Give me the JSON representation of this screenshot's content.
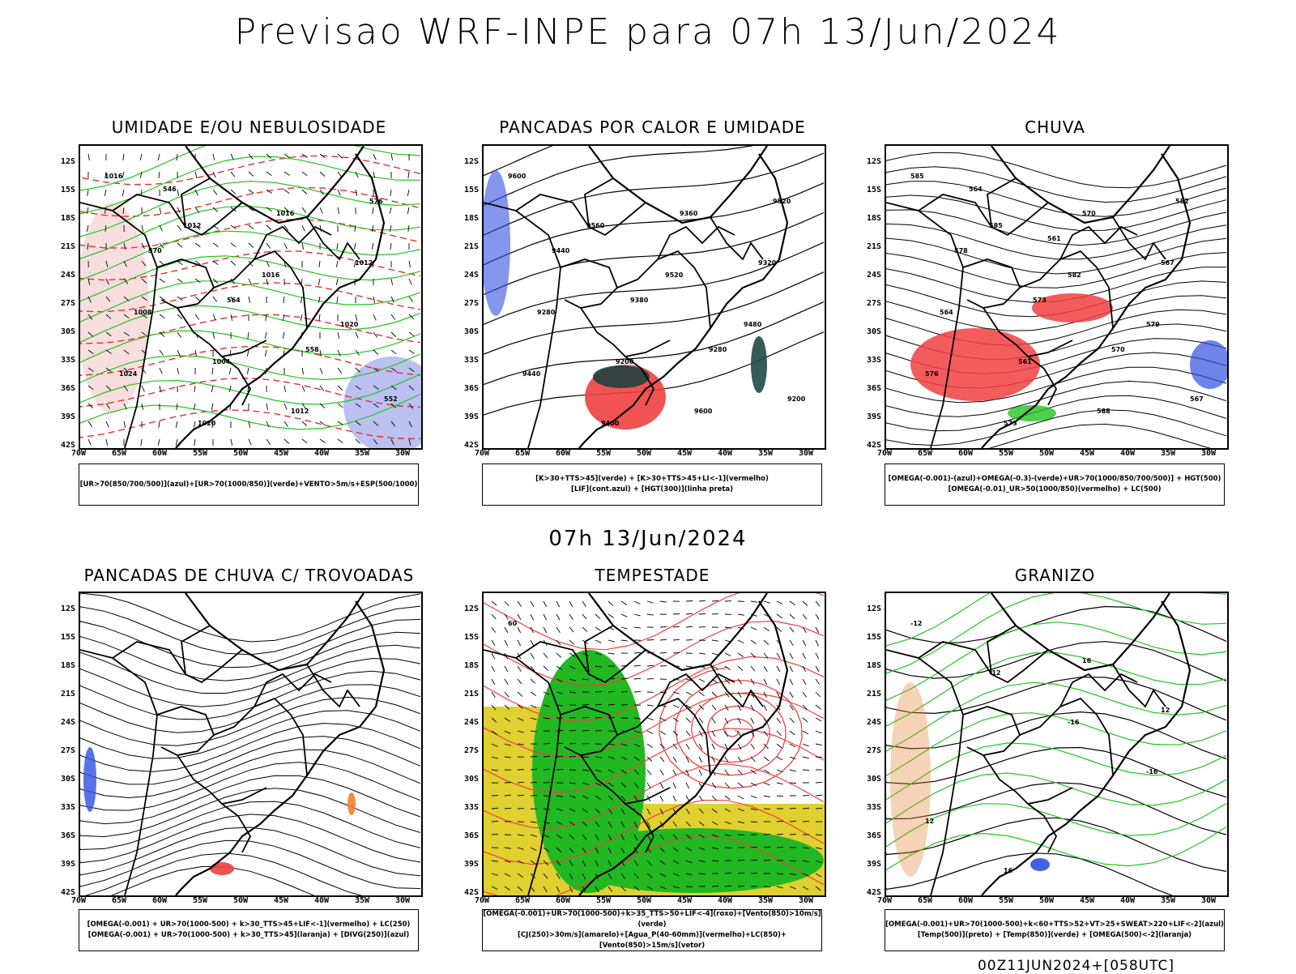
{
  "title": "Previsao WRF-INPE  para 07h 13/Jun/2024",
  "mid_title": "07h 13/Jun/2024",
  "footer": "00Z11JUN2024+[058UTC]",
  "lat_labels": [
    "12S",
    "15S",
    "18S",
    "21S",
    "24S",
    "27S",
    "30S",
    "33S",
    "36S",
    "39S",
    "42S"
  ],
  "lon_labels": [
    "70W",
    "65W",
    "60W",
    "55W",
    "50W",
    "45W",
    "40W",
    "35W",
    "30W"
  ],
  "panels": [
    {
      "title": "UMIDADE E/OU NEBULOSIDADE",
      "legend": [
        "[UR>70(850/700/500)](azul)+[UR>70(1000/850)](verde)+VENTO>5m/s+ESP(500/1000)"
      ],
      "labels": [
        "1016",
        "1012",
        "1016",
        "1020",
        "1024",
        "1020",
        "1016",
        "1012",
        "1008",
        "1004",
        "1012",
        "576",
        "570",
        "564",
        "558",
        "552",
        "546"
      ]
    },
    {
      "title": "PANCADAS POR CALOR E UMIDADE",
      "legend": [
        "[K>30+TTS>45](verde) + [K>30+TTS>45+LI<-1](vermelho)",
        "[LIF](cont.azul) + [HGT(300)](linha preta)"
      ],
      "labels": [
        "9600",
        "9560",
        "9520",
        "9480",
        "9440",
        "9400",
        "9360",
        "9320",
        "9280",
        "9200",
        "9600",
        "9520",
        "9440",
        "9380",
        "9280",
        "9200"
      ]
    },
    {
      "title": "CHUVA",
      "legend": [
        "[OMEGA(-0.001)-(azul)+OMEGA(-0.3)-(verde)+UR>70(1000/850/700/500)] + HGT(500)",
        "[OMEGA(-0.01)_UR>50(1000/850)(vermelho) + LC(500)"
      ],
      "labels": [
        "585",
        "585",
        "582",
        "579",
        "576",
        "573",
        "570",
        "567",
        "564",
        "561",
        "588",
        "582",
        "578",
        "573",
        "570",
        "567",
        "564",
        "561"
      ]
    },
    {
      "title": "PANCADAS DE CHUVA C/ TROVOADAS",
      "legend": [
        "[OMEGA(-0.001) + UR>70(1000-500) + k>30_TTS>45+LIF<-1](vermelho) + LC(250)",
        "[OMEGA(-0.001) + UR>70(1000-500) + k>30_TTS>45](laranja) + [DIVG(250)](azul)"
      ],
      "labels": []
    },
    {
      "title": "TEMPESTADE",
      "legend": [
        "[OMEGA(-0.001)+UR>70(1000-500)+k>35_TTS>50+LIF<-4](roxo)+[Vento(850)>10m/s](verde)",
        "[CJ(250)>30m/s](amarelo)+[Agua_P(40-60mm)](vermelho)+LC(850)+[Vento(850)>15m/s](vetor)"
      ],
      "labels": [
        "60"
      ]
    },
    {
      "title": "GRANIZO",
      "legend": [
        "[OMEGA(-0.001)+UR>70(1000-500)+k<60+TTS>52+VT>25+SWEAT>220+LIF<-2](azul)",
        "[Temp(500)](preto) + [Temp(850)](verde) + [OMEGA(500)<-2](laranja)"
      ],
      "labels": [
        "-12",
        "-12",
        "-16",
        "-16",
        "12",
        "16",
        "16",
        "12"
      ]
    }
  ]
}
